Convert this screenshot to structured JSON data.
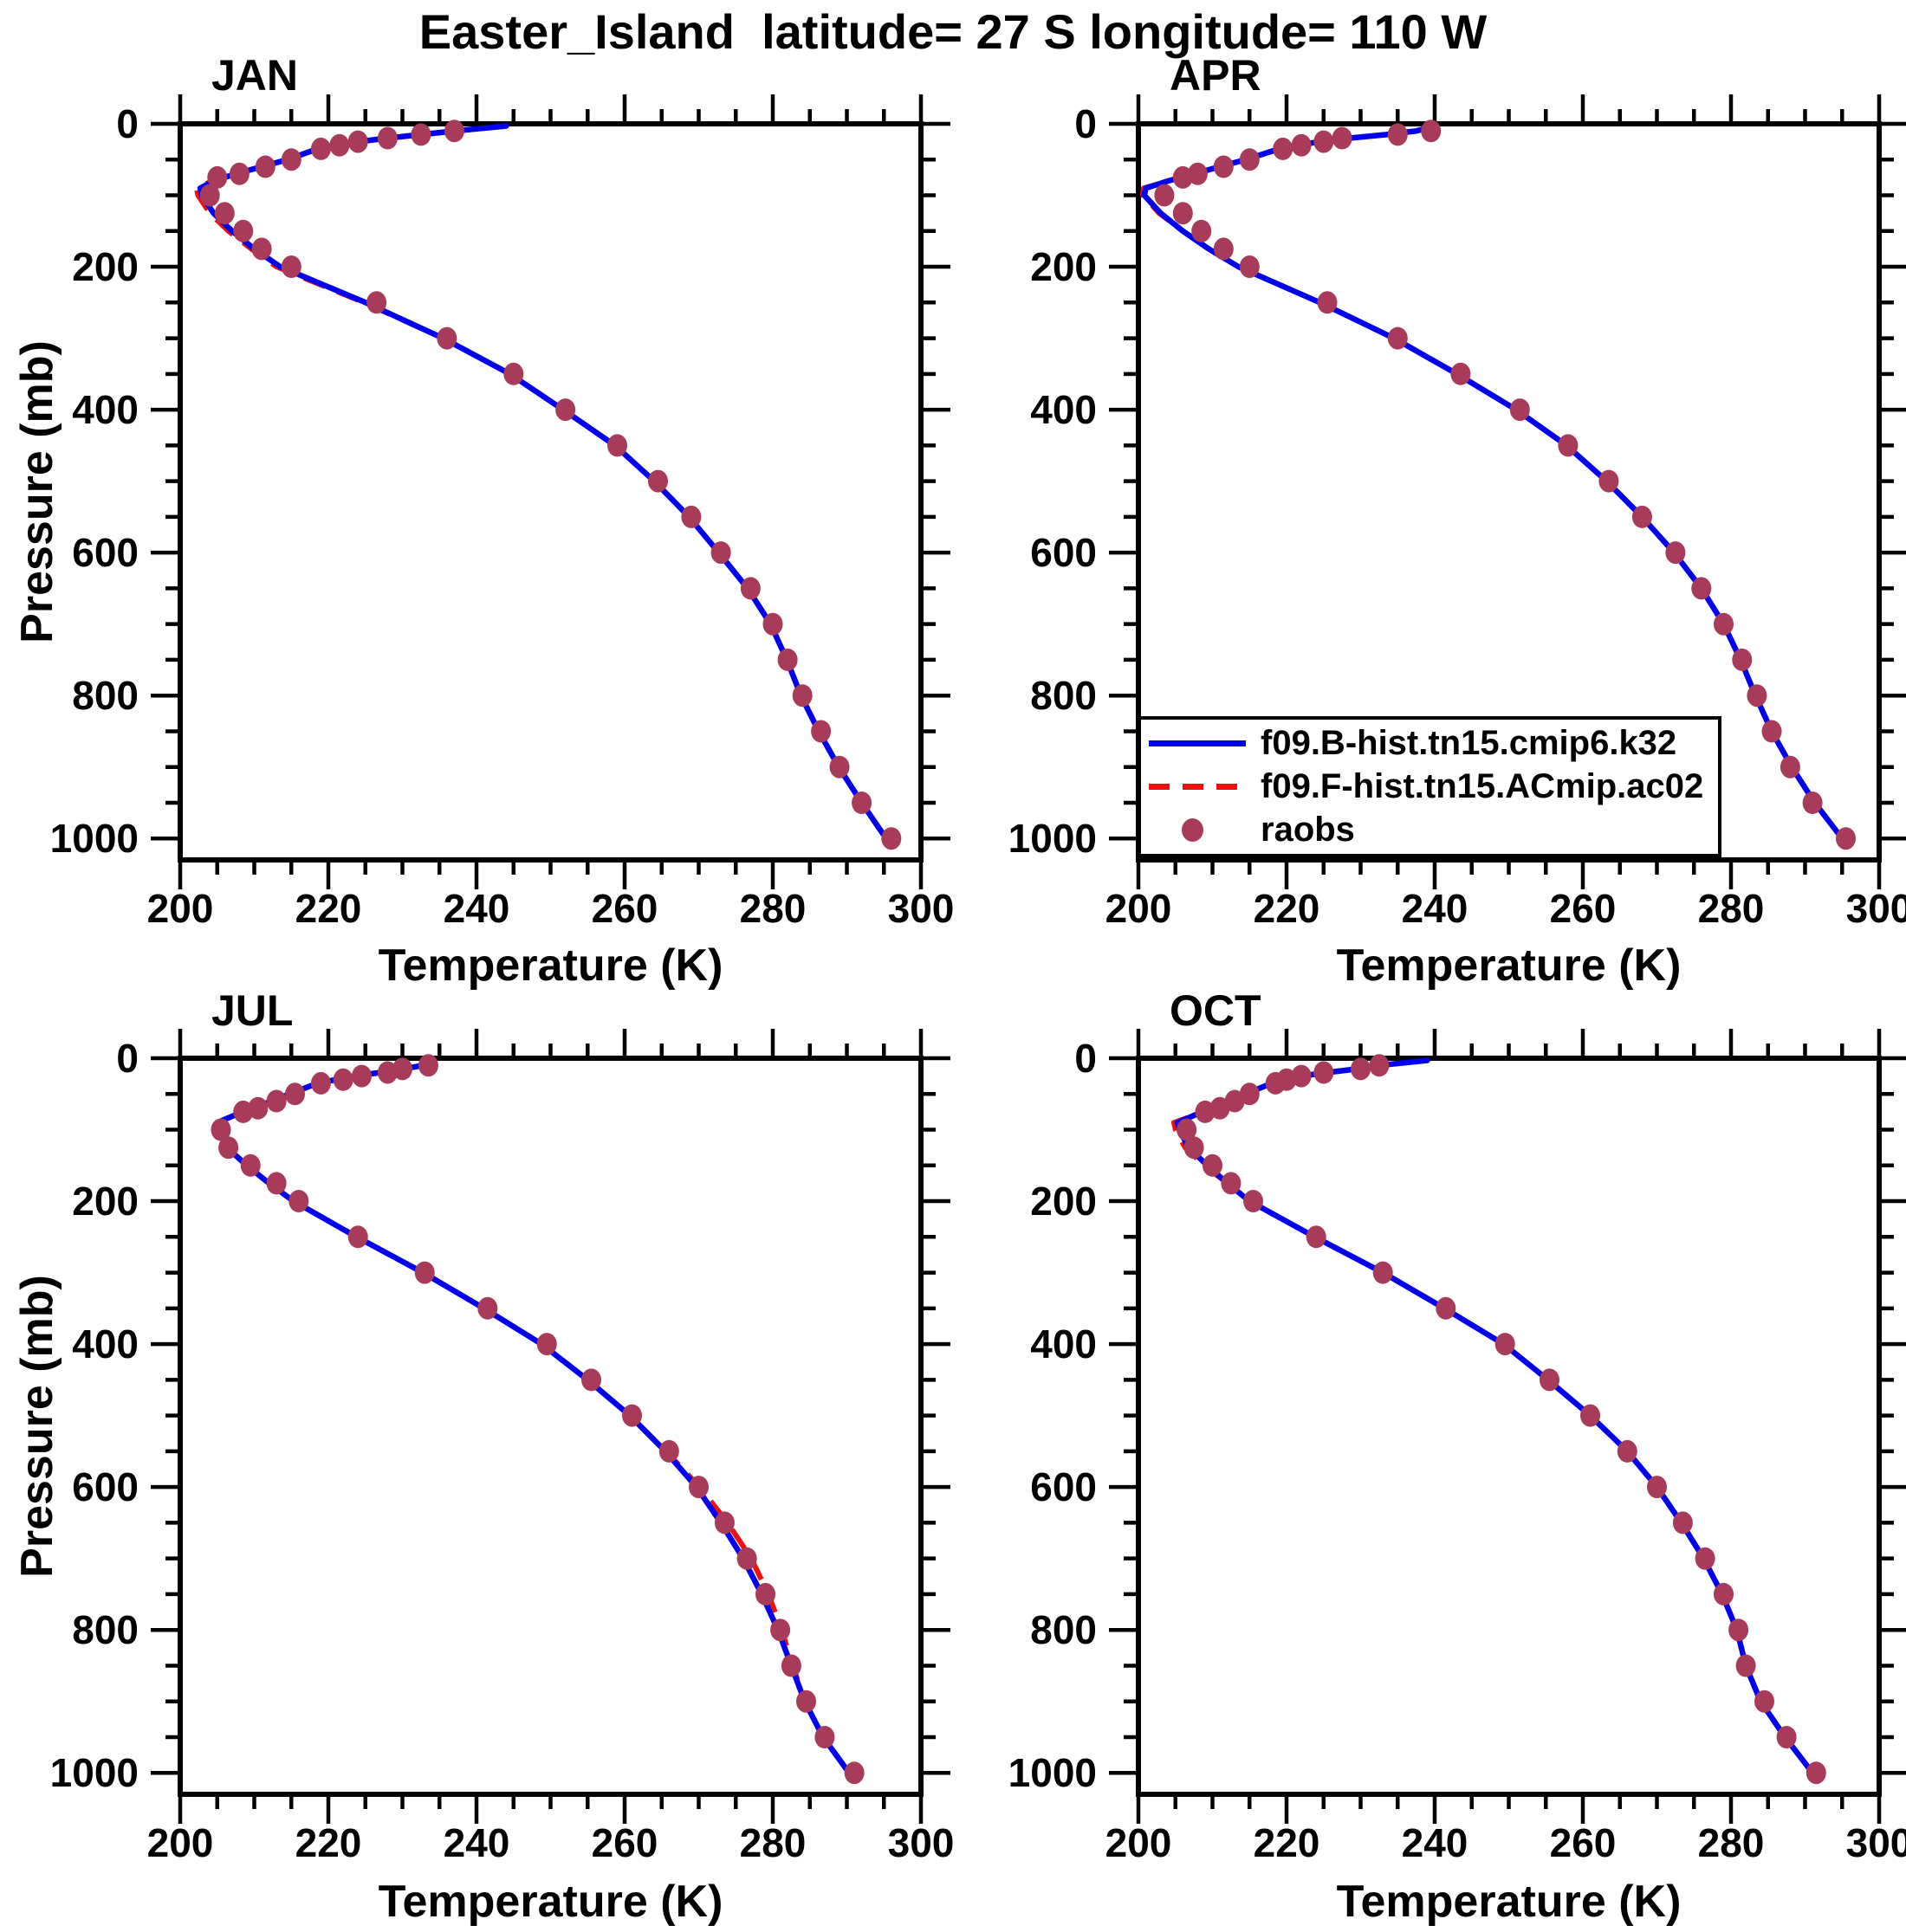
{
  "title": "Easter_Island  latitude= 27 S longitude= 110 W",
  "colors": {
    "model1_line": "#0000EE",
    "model2_line": "#EE0F0F",
    "obs_marker": "#A83A5A",
    "axis": "#000000",
    "background": "#FFFFFF"
  },
  "legend": {
    "entries": [
      {
        "label": "f09.B-hist.tn15.cmip6.k32",
        "type": "solid-line",
        "color": "#0000EE"
      },
      {
        "label": "f09.F-hist.tn15.ACmip.ac02",
        "type": "dashed-line",
        "color": "#EE0F0F"
      },
      {
        "label": "raobs",
        "type": "dot",
        "color": "#A83A5A"
      }
    ]
  },
  "axes": {
    "x": {
      "label": "Temperature (K)",
      "min": 200,
      "max": 300,
      "major_ticks": [
        200,
        220,
        240,
        260,
        280,
        300
      ],
      "minor_step": 5
    },
    "y": {
      "label": "Pressure (mb)",
      "min": 0,
      "max": 1030,
      "inverted": true,
      "major_ticks": [
        0,
        200,
        400,
        600,
        800,
        1000
      ],
      "minor_step": 50
    }
  },
  "chart_data": {
    "type": "line",
    "title": "Easter_Island  latitude= 27 S longitude= 110 W",
    "xlabel": "Temperature (K)",
    "ylabel": "Pressure (mb)",
    "xlim": [
      200,
      300
    ],
    "ylim_mb": [
      0,
      1030
    ],
    "y_inverted": true,
    "grid": false,
    "legend_position": "inside-APR-lower-left",
    "series_names": [
      "f09.B-hist.tn15.cmip6.k32",
      "f09.F-hist.tn15.ACmip.ac02",
      "raobs"
    ],
    "obs_levels_mb": [
      10,
      15,
      20,
      25,
      30,
      35,
      50,
      60,
      70,
      75,
      100,
      125,
      150,
      175,
      200,
      250,
      300,
      350,
      400,
      450,
      500,
      550,
      600,
      650,
      700,
      750,
      800,
      850,
      900,
      950,
      1000
    ],
    "model_levels_mb": [
      3,
      10,
      15,
      20,
      25,
      30,
      35,
      50,
      60,
      70,
      80,
      90,
      100,
      125,
      150,
      175,
      200,
      250,
      300,
      350,
      400,
      450,
      500,
      550,
      600,
      650,
      700,
      750,
      800,
      850,
      900,
      950,
      1000,
      1010
    ],
    "panels": [
      {
        "title": "JAN",
        "obs_T_K": [
          237,
          232.5,
          228,
          224,
          221.5,
          219,
          215,
          211.5,
          208,
          205,
          204,
          206,
          208.5,
          211,
          215,
          226.5,
          236,
          245,
          252,
          259,
          264.5,
          269,
          273,
          277,
          280,
          282,
          284,
          286.5,
          289,
          292,
          296
        ],
        "model1_T_K": [
          244,
          237,
          232.5,
          228,
          224,
          221,
          218.5,
          214.5,
          211,
          207.5,
          204.5,
          202.7,
          202.9,
          204.5,
          207,
          210,
          213.5,
          225,
          235.5,
          244.5,
          251.7,
          258.7,
          264,
          268.7,
          272.7,
          276.6,
          279.7,
          281.9,
          283.8,
          286.2,
          288.9,
          292,
          295.3,
          296
        ],
        "model2_T_K": [
          244,
          237,
          232.5,
          228,
          224,
          221,
          218.5,
          214.5,
          211,
          207.5,
          204.3,
          202.2,
          202.4,
          204.0,
          206.5,
          209.6,
          213.0,
          224.8,
          235.5,
          244.5,
          251.7,
          258.7,
          264,
          268.7,
          272.7,
          276.6,
          279.7,
          281.9,
          283.8,
          286.2,
          288.9,
          292,
          295.3,
          296
        ]
      },
      {
        "title": "APR",
        "obs_T_K": [
          239.5,
          235,
          227.5,
          225,
          222,
          219.5,
          215,
          211.5,
          208,
          206,
          203.5,
          206,
          208.5,
          211.5,
          215,
          225.5,
          235,
          243.5,
          251.5,
          258,
          263.5,
          268,
          272.5,
          276,
          279,
          281.5,
          283.5,
          285.5,
          288,
          291,
          295.5
        ],
        "model1_T_K": [
          240,
          237.5,
          233.5,
          228.5,
          224.5,
          221.5,
          219,
          214.5,
          211,
          207.5,
          204,
          201,
          200.8,
          203,
          206,
          209.5,
          213.5,
          224.5,
          234.5,
          243,
          251,
          257.8,
          263.2,
          268,
          272.3,
          276,
          279,
          281.3,
          283.3,
          285.5,
          288.2,
          291.3,
          295,
          295.8
        ],
        "model2_T_K": [
          240,
          237.5,
          233.5,
          228.5,
          224.5,
          221.5,
          219,
          214.5,
          211,
          207.5,
          204,
          200.7,
          200.6,
          202.8,
          206,
          209.5,
          213.5,
          224.5,
          234.5,
          243,
          251,
          257.8,
          263.2,
          268,
          272.3,
          276,
          279,
          281.3,
          283.3,
          285.5,
          288.2,
          291.3,
          295,
          295.8
        ]
      },
      {
        "title": "JUL",
        "obs_T_K": [
          233.5,
          230,
          228,
          224.5,
          222,
          219,
          215.5,
          213,
          210.5,
          208.5,
          205.5,
          206.5,
          209.5,
          213,
          216,
          224,
          233,
          241.5,
          249.5,
          255.5,
          261,
          266,
          270,
          273.5,
          276.5,
          279,
          281,
          282.5,
          284.5,
          287,
          291
        ],
        "model1_T_K": [
          233.5,
          232.8,
          230,
          227,
          223.5,
          221,
          218.5,
          214.8,
          212.3,
          209.8,
          207.3,
          205,
          205.2,
          206.3,
          209,
          212,
          215.3,
          223.8,
          232.8,
          241,
          248.8,
          255,
          260.7,
          265.5,
          269.7,
          273,
          276,
          278.5,
          280.7,
          282.5,
          284.3,
          286.8,
          290.3,
          291
        ],
        "model2_T_K": [
          233.5,
          232.8,
          230,
          227,
          223.5,
          221,
          218.5,
          214.8,
          212.3,
          209.8,
          207.3,
          205,
          205.2,
          206.3,
          209,
          212,
          215.3,
          223.8,
          232.8,
          241,
          248.8,
          255,
          260.7,
          265.6,
          270.1,
          273.9,
          277.1,
          279.4,
          281.2,
          282.7,
          284.3,
          286.8,
          290.3,
          291
        ]
      },
      {
        "title": "OCT",
        "obs_T_K": [
          232.5,
          230,
          225,
          222,
          220,
          218.5,
          215,
          213,
          211,
          209,
          206.5,
          207.5,
          210,
          212.5,
          215.5,
          224,
          233,
          241.5,
          249.5,
          255.5,
          261,
          266,
          270,
          273.5,
          276.5,
          279,
          281,
          282,
          284.5,
          287.5,
          291.5
        ],
        "model1_T_K": [
          239,
          232.5,
          229.5,
          225.5,
          222,
          219.5,
          218,
          214.5,
          212.2,
          210,
          207.5,
          205.3,
          205.5,
          206.8,
          209.3,
          212,
          215,
          223.8,
          233,
          241.3,
          249.3,
          255.3,
          261,
          266,
          270,
          273.3,
          276.3,
          278.8,
          280.8,
          282,
          284,
          287.3,
          291,
          291.8
        ],
        "model2_T_K": [
          239,
          232.5,
          229.5,
          225.5,
          222,
          219.5,
          218,
          214.5,
          212.2,
          210,
          207.5,
          204.8,
          205.0,
          206.3,
          208.9,
          212,
          215,
          223.8,
          233,
          241.3,
          249.3,
          255.3,
          261,
          266,
          270,
          273.3,
          276.3,
          278.8,
          280.8,
          282,
          284,
          287.3,
          291,
          291.8
        ]
      }
    ]
  }
}
